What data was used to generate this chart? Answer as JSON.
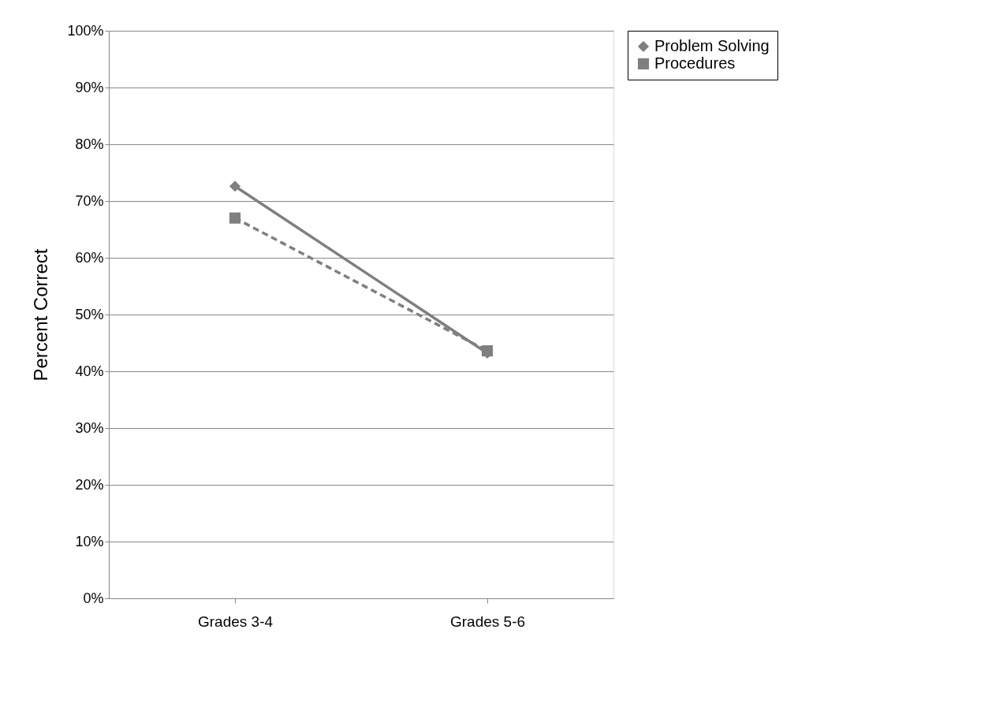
{
  "chart_data": {
    "type": "line",
    "ylabel": "Percent Correct",
    "categories": [
      "Grades 3-4",
      "Grades 5-6"
    ],
    "series": [
      {
        "name": "Problem Solving",
        "color": "#7f7f7f",
        "values": [
          72.6,
          43.2
        ],
        "marker": "diamond",
        "line_style": "solid"
      },
      {
        "name": "Procedures",
        "color": "#7f7f7f",
        "values": [
          67.0,
          43.6
        ],
        "marker": "square",
        "line_style": "dashed"
      }
    ],
    "ylim": [
      0,
      100
    ],
    "yticks": [
      {
        "value": 0,
        "label": "0%"
      },
      {
        "value": 10,
        "label": "10%"
      },
      {
        "value": 20,
        "label": "20%"
      },
      {
        "value": 30,
        "label": "30%"
      },
      {
        "value": 40,
        "label": "40%"
      },
      {
        "value": 50,
        "label": "50%"
      },
      {
        "value": 60,
        "label": "60%"
      },
      {
        "value": 70,
        "label": "70%"
      },
      {
        "value": 80,
        "label": "80%"
      },
      {
        "value": 90,
        "label": "90%"
      },
      {
        "value": 100,
        "label": "100%"
      }
    ],
    "grid": "y",
    "legend": "right"
  }
}
